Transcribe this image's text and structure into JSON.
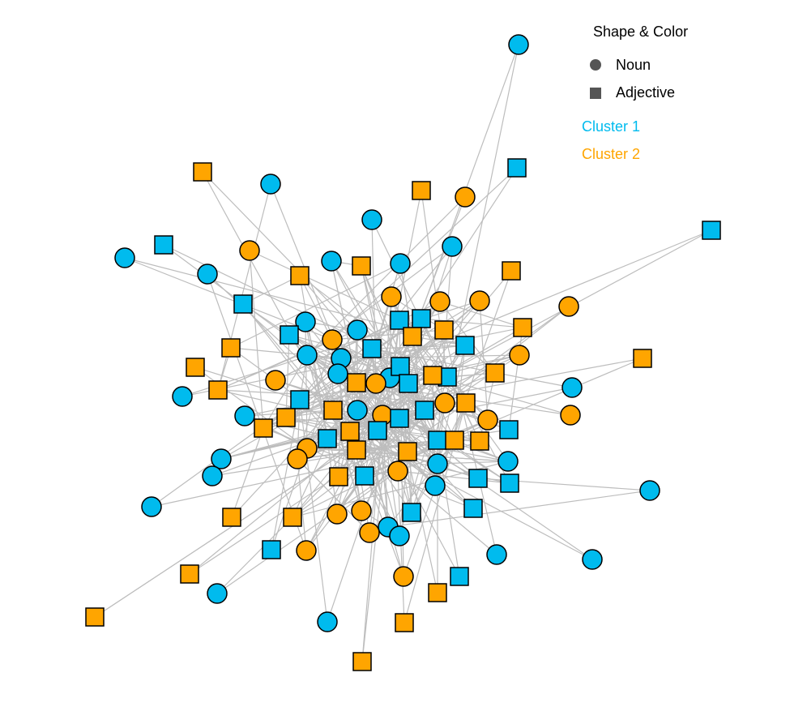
{
  "legend": {
    "title": "Shape & Color",
    "shapes": [
      "Noun",
      "Adjective"
    ],
    "clusters": [
      "Cluster 1",
      "Cluster 2"
    ]
  }
}
